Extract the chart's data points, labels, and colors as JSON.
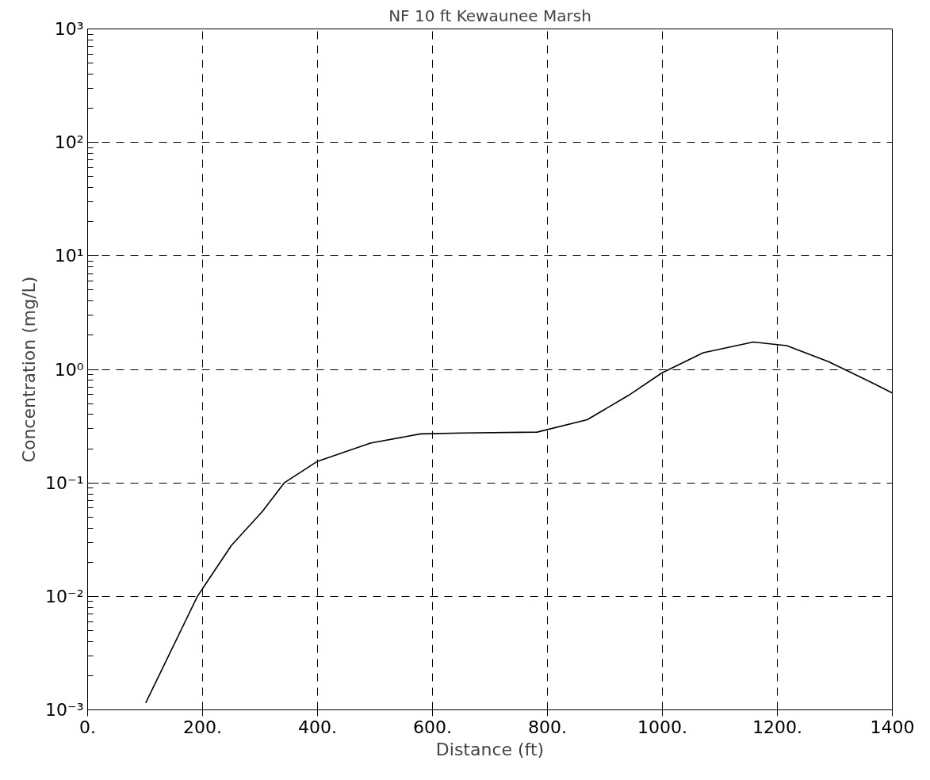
{
  "chart_data": {
    "type": "line",
    "title": "NF 10 ft Kewaunee Marsh",
    "xlabel": "Distance (ft)",
    "ylabel": "Concentration (mg/L)",
    "log": "y",
    "grid": true,
    "line_style": "solid",
    "marker": "none",
    "xlim": [
      0,
      1400
    ],
    "ylim": [
      0.001,
      1000
    ],
    "xticks": [
      {
        "value": 0,
        "label": "0."
      },
      {
        "value": 200,
        "label": "200."
      },
      {
        "value": 400,
        "label": "400."
      },
      {
        "value": 600,
        "label": "600."
      },
      {
        "value": 800,
        "label": "800."
      },
      {
        "value": 1000,
        "label": "1000."
      },
      {
        "value": 1200,
        "label": "1200."
      },
      {
        "value": 1400,
        "label": "1400"
      }
    ],
    "yticks": [
      {
        "value": 0.001,
        "label": "10⁻³"
      },
      {
        "value": 0.01,
        "label": "10⁻²"
      },
      {
        "value": 0.1,
        "label": "10⁻¹"
      },
      {
        "value": 1,
        "label": "10⁰"
      },
      {
        "value": 10,
        "label": "10¹"
      },
      {
        "value": 100,
        "label": "10²"
      },
      {
        "value": 1000,
        "label": "10³"
      }
    ],
    "series": [
      {
        "color": "#000000",
        "x": [
          101,
          191,
          250,
          304,
          342,
          400,
          492,
          579,
          652,
          782,
          869,
          941,
          999,
          1071,
          1158,
          1216,
          1289,
          1361,
          1400
        ],
        "values": [
          0.00115,
          0.01,
          0.028,
          0.056,
          0.1,
          0.155,
          0.224,
          0.27,
          0.275,
          0.28,
          0.36,
          0.59,
          0.93,
          1.4,
          1.74,
          1.62,
          1.17,
          0.78,
          0.62
        ]
      }
    ]
  }
}
